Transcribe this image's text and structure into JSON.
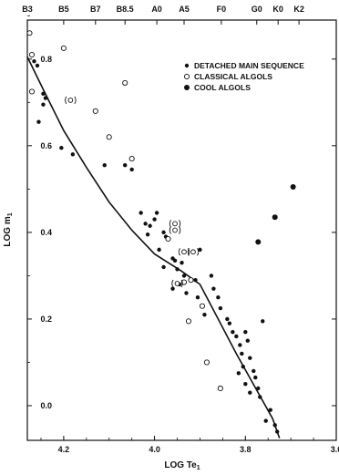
{
  "chart_data": {
    "type": "scatter",
    "xlabel": "LOG Te",
    "xlabel_sub": "1",
    "ylabel": "LOG m",
    "ylabel_sub": "1",
    "xlim": [
      4.28,
      3.6
    ],
    "ylim": [
      -0.08,
      0.89
    ],
    "x_reversed": true,
    "grid": false,
    "legend_position": "top-right",
    "x_ticks": [
      {
        "value": 4.2,
        "label": "4.2"
      },
      {
        "value": 4.0,
        "label": "4.0"
      },
      {
        "value": 3.8,
        "label": "3.8"
      },
      {
        "value": 3.6,
        "label": "3.6"
      }
    ],
    "y_ticks": [
      {
        "value": 0.0,
        "label": "0.0"
      },
      {
        "value": 0.2,
        "label": "0.2"
      },
      {
        "value": 0.4,
        "label": "0.4"
      },
      {
        "value": 0.6,
        "label": "0.6"
      },
      {
        "value": 0.8,
        "label": "0.8"
      }
    ],
    "top_ticks": [
      {
        "value": 4.28,
        "label": "B3"
      },
      {
        "value": 4.2,
        "label": "B5"
      },
      {
        "value": 4.13,
        "label": "B7"
      },
      {
        "value": 4.065,
        "label": "B8.5"
      },
      {
        "value": 3.995,
        "label": "A0"
      },
      {
        "value": 3.935,
        "label": "A5"
      },
      {
        "value": 3.853,
        "label": "F0"
      },
      {
        "value": 3.775,
        "label": "G0"
      },
      {
        "value": 3.728,
        "label": "K0"
      },
      {
        "value": 3.682,
        "label": "K2"
      }
    ],
    "legend": [
      {
        "marker": "filled",
        "label": "DETACHED MAIN SEQUENCE"
      },
      {
        "marker": "open",
        "label": "CLASSICAL ALGOLS"
      },
      {
        "marker": "big",
        "label": "COOL ALGOLS"
      }
    ],
    "series": [
      {
        "name": "DETACHED MAIN SEQUENCE",
        "marker": "filled",
        "points": [
          [
            4.265,
            0.795
          ],
          [
            4.258,
            0.785
          ],
          [
            4.245,
            0.72
          ],
          [
            4.24,
            0.71
          ],
          [
            4.255,
            0.655
          ],
          [
            4.245,
            0.695
          ],
          [
            4.205,
            0.595
          ],
          [
            4.18,
            0.58
          ],
          [
            4.11,
            0.555
          ],
          [
            4.065,
            0.555
          ],
          [
            4.05,
            0.545
          ],
          [
            4.03,
            0.445
          ],
          [
            4.02,
            0.42
          ],
          [
            4.01,
            0.415
          ],
          [
            4.0,
            0.43
          ],
          [
            3.995,
            0.445
          ],
          [
            3.98,
            0.4
          ],
          [
            3.975,
            0.39
          ],
          [
            4.015,
            0.395
          ],
          [
            3.99,
            0.36
          ],
          [
            3.96,
            0.34
          ],
          [
            3.955,
            0.335
          ],
          [
            3.95,
            0.315
          ],
          [
            3.94,
            0.33
          ],
          [
            3.935,
            0.3
          ],
          [
            3.98,
            0.32
          ],
          [
            3.96,
            0.27
          ],
          [
            3.945,
            0.28
          ],
          [
            3.93,
            0.26
          ],
          [
            3.91,
            0.29
          ],
          [
            3.905,
            0.25
          ],
          [
            3.895,
            0.23
          ],
          [
            3.89,
            0.21
          ],
          [
            3.9,
            0.36
          ],
          [
            3.875,
            0.3
          ],
          [
            3.87,
            0.27
          ],
          [
            3.86,
            0.25
          ],
          [
            3.855,
            0.225
          ],
          [
            3.84,
            0.2
          ],
          [
            3.835,
            0.19
          ],
          [
            3.828,
            0.17
          ],
          [
            3.82,
            0.16
          ],
          [
            3.812,
            0.14
          ],
          [
            3.808,
            0.12
          ],
          [
            3.8,
            0.17
          ],
          [
            3.795,
            0.15
          ],
          [
            3.79,
            0.11
          ],
          [
            3.782,
            0.08
          ],
          [
            3.778,
            0.065
          ],
          [
            3.772,
            0.04
          ],
          [
            3.768,
            0.02
          ],
          [
            3.762,
            0.195
          ],
          [
            3.755,
            -0.035
          ],
          [
            3.745,
            -0.01
          ],
          [
            3.735,
            -0.045
          ],
          [
            3.73,
            -0.06
          ],
          [
            3.815,
            0.075
          ],
          [
            3.8,
            0.05
          ],
          [
            3.79,
            0.03
          ],
          [
            3.805,
            0.09
          ]
        ]
      },
      {
        "name": "CLASSICAL ALGOLS",
        "marker": "open",
        "points": [
          [
            4.275,
            0.86
          ],
          [
            4.27,
            0.81
          ],
          [
            4.27,
            0.725
          ],
          [
            4.2,
            0.825
          ],
          [
            4.065,
            0.745
          ],
          [
            4.13,
            0.68
          ],
          [
            4.1,
            0.62
          ],
          [
            4.05,
            0.57
          ],
          [
            3.97,
            0.385
          ],
          [
            3.925,
            0.195
          ],
          [
            3.895,
            0.23
          ],
          [
            3.885,
            0.1
          ],
          [
            3.855,
            0.04
          ],
          [
            3.935,
            0.285
          ],
          [
            3.92,
            0.29
          ]
        ]
      },
      {
        "name": "COOL ALGOLS",
        "marker": "big",
        "points": [
          [
            3.695,
            0.505
          ],
          [
            3.735,
            0.435
          ],
          [
            3.772,
            0.378
          ]
        ]
      }
    ],
    "bracketed_points": [
      [
        4.185,
        0.705
      ],
      [
        3.955,
        0.42
      ],
      [
        3.955,
        0.405
      ],
      [
        3.935,
        0.355
      ],
      [
        3.915,
        0.355
      ],
      [
        3.95,
        0.282
      ]
    ],
    "line": {
      "name": "main sequence",
      "points": [
        [
          4.28,
          0.805
        ],
        [
          4.245,
          0.73
        ],
        [
          4.2,
          0.635
        ],
        [
          4.15,
          0.55
        ],
        [
          4.1,
          0.47
        ],
        [
          4.05,
          0.405
        ],
        [
          4.0,
          0.35
        ],
        [
          3.97,
          0.33
        ],
        [
          3.94,
          0.31
        ],
        [
          3.9,
          0.28
        ],
        [
          3.86,
          0.2
        ],
        [
          3.82,
          0.12
        ],
        [
          3.78,
          0.045
        ],
        [
          3.74,
          -0.03
        ],
        [
          3.725,
          -0.075
        ]
      ]
    }
  }
}
